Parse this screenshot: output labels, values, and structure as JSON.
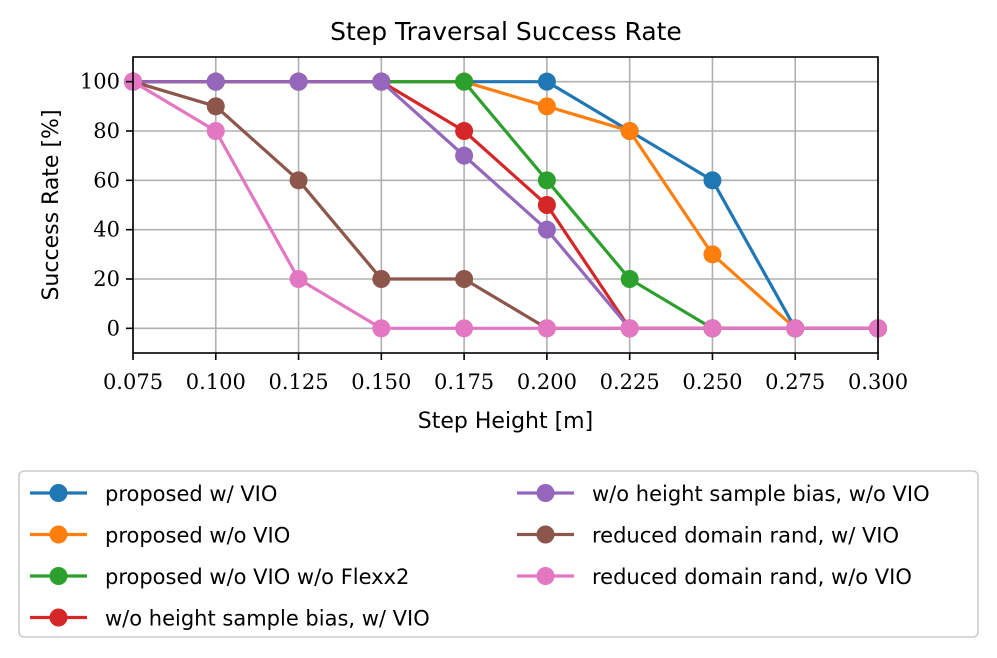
{
  "chart_data": {
    "type": "line",
    "title": "Step Traversal Success Rate",
    "xlabel": "Step Height [m]",
    "ylabel": "Success Rate [%]",
    "xlim": [
      0.075,
      0.3
    ],
    "ylim": [
      -10,
      110
    ],
    "grid": true,
    "legend_position": "below",
    "x_ticks": [
      0.075,
      0.1,
      0.125,
      0.15,
      0.175,
      0.2,
      0.225,
      0.25,
      0.275,
      0.3
    ],
    "x_tick_labels": [
      "0.075",
      "0.100",
      "0.125",
      "0.150",
      "0.175",
      "0.200",
      "0.225",
      "0.250",
      "0.275",
      "0.300"
    ],
    "y_ticks": [
      0,
      20,
      40,
      60,
      80,
      100
    ],
    "y_tick_labels": [
      "0",
      "20",
      "40",
      "60",
      "80",
      "100"
    ],
    "series": [
      {
        "name": "proposed w/ VIO",
        "color": "#1f77b4",
        "x": [
          0.075,
          0.1,
          0.125,
          0.15,
          0.175,
          0.2,
          0.225,
          0.25,
          0.275,
          0.3
        ],
        "values": [
          100,
          100,
          100,
          100,
          100,
          100,
          80,
          60,
          0,
          0
        ]
      },
      {
        "name": "proposed w/o VIO",
        "color": "#ff7f0e",
        "x": [
          0.075,
          0.1,
          0.125,
          0.15,
          0.175,
          0.2,
          0.225,
          0.25,
          0.275,
          0.3
        ],
        "values": [
          100,
          100,
          100,
          100,
          100,
          90,
          80,
          30,
          0,
          0
        ]
      },
      {
        "name": "proposed w/o VIO w/o Flexx2",
        "color": "#2ca02c",
        "x": [
          0.075,
          0.1,
          0.125,
          0.15,
          0.175,
          0.2,
          0.225,
          0.25,
          0.275,
          0.3
        ],
        "values": [
          100,
          100,
          100,
          100,
          100,
          60,
          20,
          0,
          0,
          0
        ]
      },
      {
        "name": "w/o height sample bias, w/ VIO",
        "color": "#d62728",
        "x": [
          0.075,
          0.1,
          0.125,
          0.15,
          0.175,
          0.2,
          0.225,
          0.25,
          0.275,
          0.3
        ],
        "values": [
          100,
          100,
          100,
          100,
          80,
          50,
          0,
          0,
          0,
          0
        ]
      },
      {
        "name": "w/o height sample bias, w/o VIO",
        "color": "#9467bd",
        "x": [
          0.075,
          0.1,
          0.125,
          0.15,
          0.175,
          0.2,
          0.225,
          0.25,
          0.275,
          0.3
        ],
        "values": [
          100,
          100,
          100,
          100,
          70,
          40,
          0,
          0,
          0,
          0
        ]
      },
      {
        "name": "reduced domain rand, w/ VIO",
        "color": "#8c564b",
        "x": [
          0.075,
          0.1,
          0.125,
          0.15,
          0.175,
          0.2,
          0.225,
          0.25,
          0.275,
          0.3
        ],
        "values": [
          100,
          90,
          60,
          20,
          20,
          0,
          0,
          0,
          0,
          0
        ]
      },
      {
        "name": "reduced domain rand, w/o VIO",
        "color": "#e377c2",
        "x": [
          0.075,
          0.1,
          0.125,
          0.15,
          0.175,
          0.2,
          0.225,
          0.25,
          0.275,
          0.3
        ],
        "values": [
          100,
          80,
          20,
          0,
          0,
          0,
          0,
          0,
          0,
          0
        ]
      }
    ]
  }
}
